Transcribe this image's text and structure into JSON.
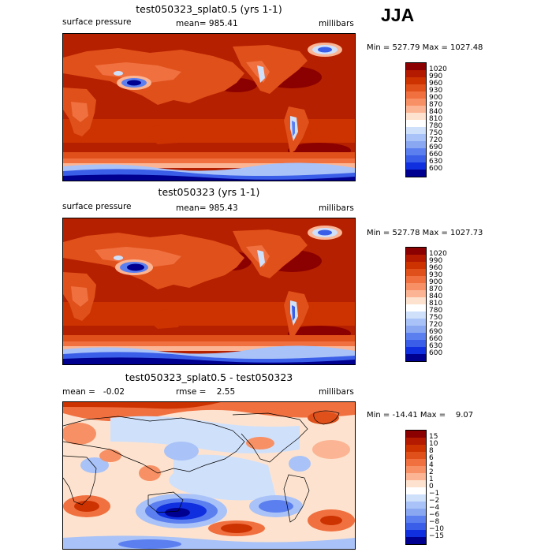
{
  "season": "JJA",
  "panels": [
    {
      "title": "test050323_splat0.5 (yrs 1-1)",
      "left_label": "surface pressure",
      "center_label": "mean= 985.41",
      "right_label": "millibars",
      "minmax": "Min = 527.79 Max = 1027.48",
      "colorbar": {
        "labels": [
          "1020",
          "990",
          "960",
          "930",
          "900",
          "870",
          "840",
          "810",
          "780",
          "750",
          "720",
          "690",
          "660",
          "630",
          "600"
        ],
        "colors": [
          "#8b0000",
          "#b31a00",
          "#cc3300",
          "#e0501a",
          "#f07040",
          "#f79064",
          "#fbb594",
          "#fde3cf",
          "#ffffff",
          "#cfe0fb",
          "#a9c2f7",
          "#8aa8f2",
          "#5c7ff0",
          "#3a5ee8",
          "#1030e0",
          "#000090"
        ]
      }
    },
    {
      "title": "test050323 (yrs 1-1)",
      "left_label": "surface pressure",
      "center_label": "mean= 985.43",
      "right_label": "millibars",
      "minmax": "Min = 527.78 Max = 1027.73",
      "colorbar": {
        "labels": [
          "1020",
          "990",
          "960",
          "930",
          "900",
          "870",
          "840",
          "810",
          "780",
          "750",
          "720",
          "690",
          "660",
          "630",
          "600"
        ],
        "colors": [
          "#8b0000",
          "#b31a00",
          "#cc3300",
          "#e0501a",
          "#f07040",
          "#f79064",
          "#fbb594",
          "#fde3cf",
          "#ffffff",
          "#cfe0fb",
          "#a9c2f7",
          "#8aa8f2",
          "#5c7ff0",
          "#3a5ee8",
          "#1030e0",
          "#000090"
        ]
      }
    },
    {
      "title": "test050323_splat0.5 - test050323",
      "left_label": "mean =   -0.02",
      "center_label": "rmse =    2.55",
      "right_label": "millibars",
      "minmax": "Min = -14.41 Max =    9.07",
      "colorbar": {
        "labels": [
          "15",
          "10",
          "8",
          "6",
          "4",
          "2",
          "1",
          "0",
          "−1",
          "−2",
          "−4",
          "−6",
          "−8",
          "−10",
          "−15"
        ],
        "colors": [
          "#8b0000",
          "#b31a00",
          "#cc3300",
          "#e0501a",
          "#f07040",
          "#f79064",
          "#fbb594",
          "#fde3cf",
          "#ffffff",
          "#cfe0fb",
          "#a9c2f7",
          "#8aa8f2",
          "#5c7ff0",
          "#3a5ee8",
          "#1030e0",
          "#000090"
        ]
      }
    }
  ],
  "map_colors": {
    "deep_red": "#b52000",
    "mid_red": "#cc3300",
    "orange": "#e0501a",
    "light_orange": "#f07040",
    "peach": "#fbb594",
    "white": "#ffffff",
    "light_blue": "#cfe0fb",
    "blue": "#5c7ff0",
    "dark_blue": "#1030e0",
    "navy": "#000090"
  }
}
